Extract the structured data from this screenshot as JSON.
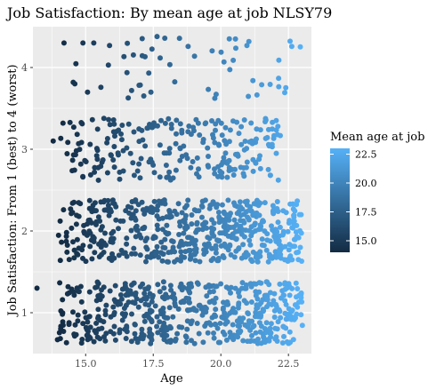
{
  "chart_data": {
    "type": "scatter",
    "title": "Job Satisfaction: By mean age at job NLSY79",
    "xlabel": "Age",
    "ylabel": "Job Satisfaction: From 1 (best) to 4 (worst)",
    "xlim": [
      13.05,
      23.35
    ],
    "ylim": [
      0.5,
      4.5
    ],
    "x_ticks": [
      15.0,
      17.5,
      20.0,
      22.5
    ],
    "x_tick_labels": [
      "15.0",
      "17.5",
      "20.0",
      "22.5"
    ],
    "y_ticks": [
      1,
      2,
      3,
      4
    ],
    "y_tick_labels": [
      "1",
      "2",
      "3",
      "4"
    ],
    "grid": true,
    "legend": {
      "title": "Mean age at job",
      "position": "right",
      "ticks": [
        15.0,
        17.5,
        20.0,
        22.5
      ],
      "tick_labels": [
        "15.0",
        "17.5",
        "20.0",
        "22.5"
      ],
      "range": [
        14.0,
        23.0
      ]
    },
    "colors": {
      "low": "#132B43",
      "high": "#56B1F7",
      "panel": "#EBEBEB",
      "grid": "#FFFFFF"
    },
    "jitter": {
      "x": 0.4,
      "y": 0.4
    },
    "groups": [
      {
        "y": 1,
        "x_range": [
          14.0,
          23.0
        ],
        "count": 520,
        "density": "dense"
      },
      {
        "y": 2,
        "x_range": [
          14.0,
          23.0
        ],
        "count": 560,
        "density": "dense"
      },
      {
        "y": 3,
        "x_range": [
          14.0,
          22.2
        ],
        "count": 240,
        "density": "medium"
      },
      {
        "y": 4,
        "x_range": [
          14.5,
          23.0
        ],
        "count": 55,
        "density": "sparse"
      }
    ],
    "outliers": [
      {
        "x": 13.2,
        "y": 1.3
      },
      {
        "x": 13.8,
        "y": 3.1
      },
      {
        "x": 14.2,
        "y": 4.3
      },
      {
        "x": 14.9,
        "y": 4.3
      },
      {
        "x": 15.3,
        "y": 4.3
      },
      {
        "x": 14.6,
        "y": 3.8
      }
    ]
  }
}
